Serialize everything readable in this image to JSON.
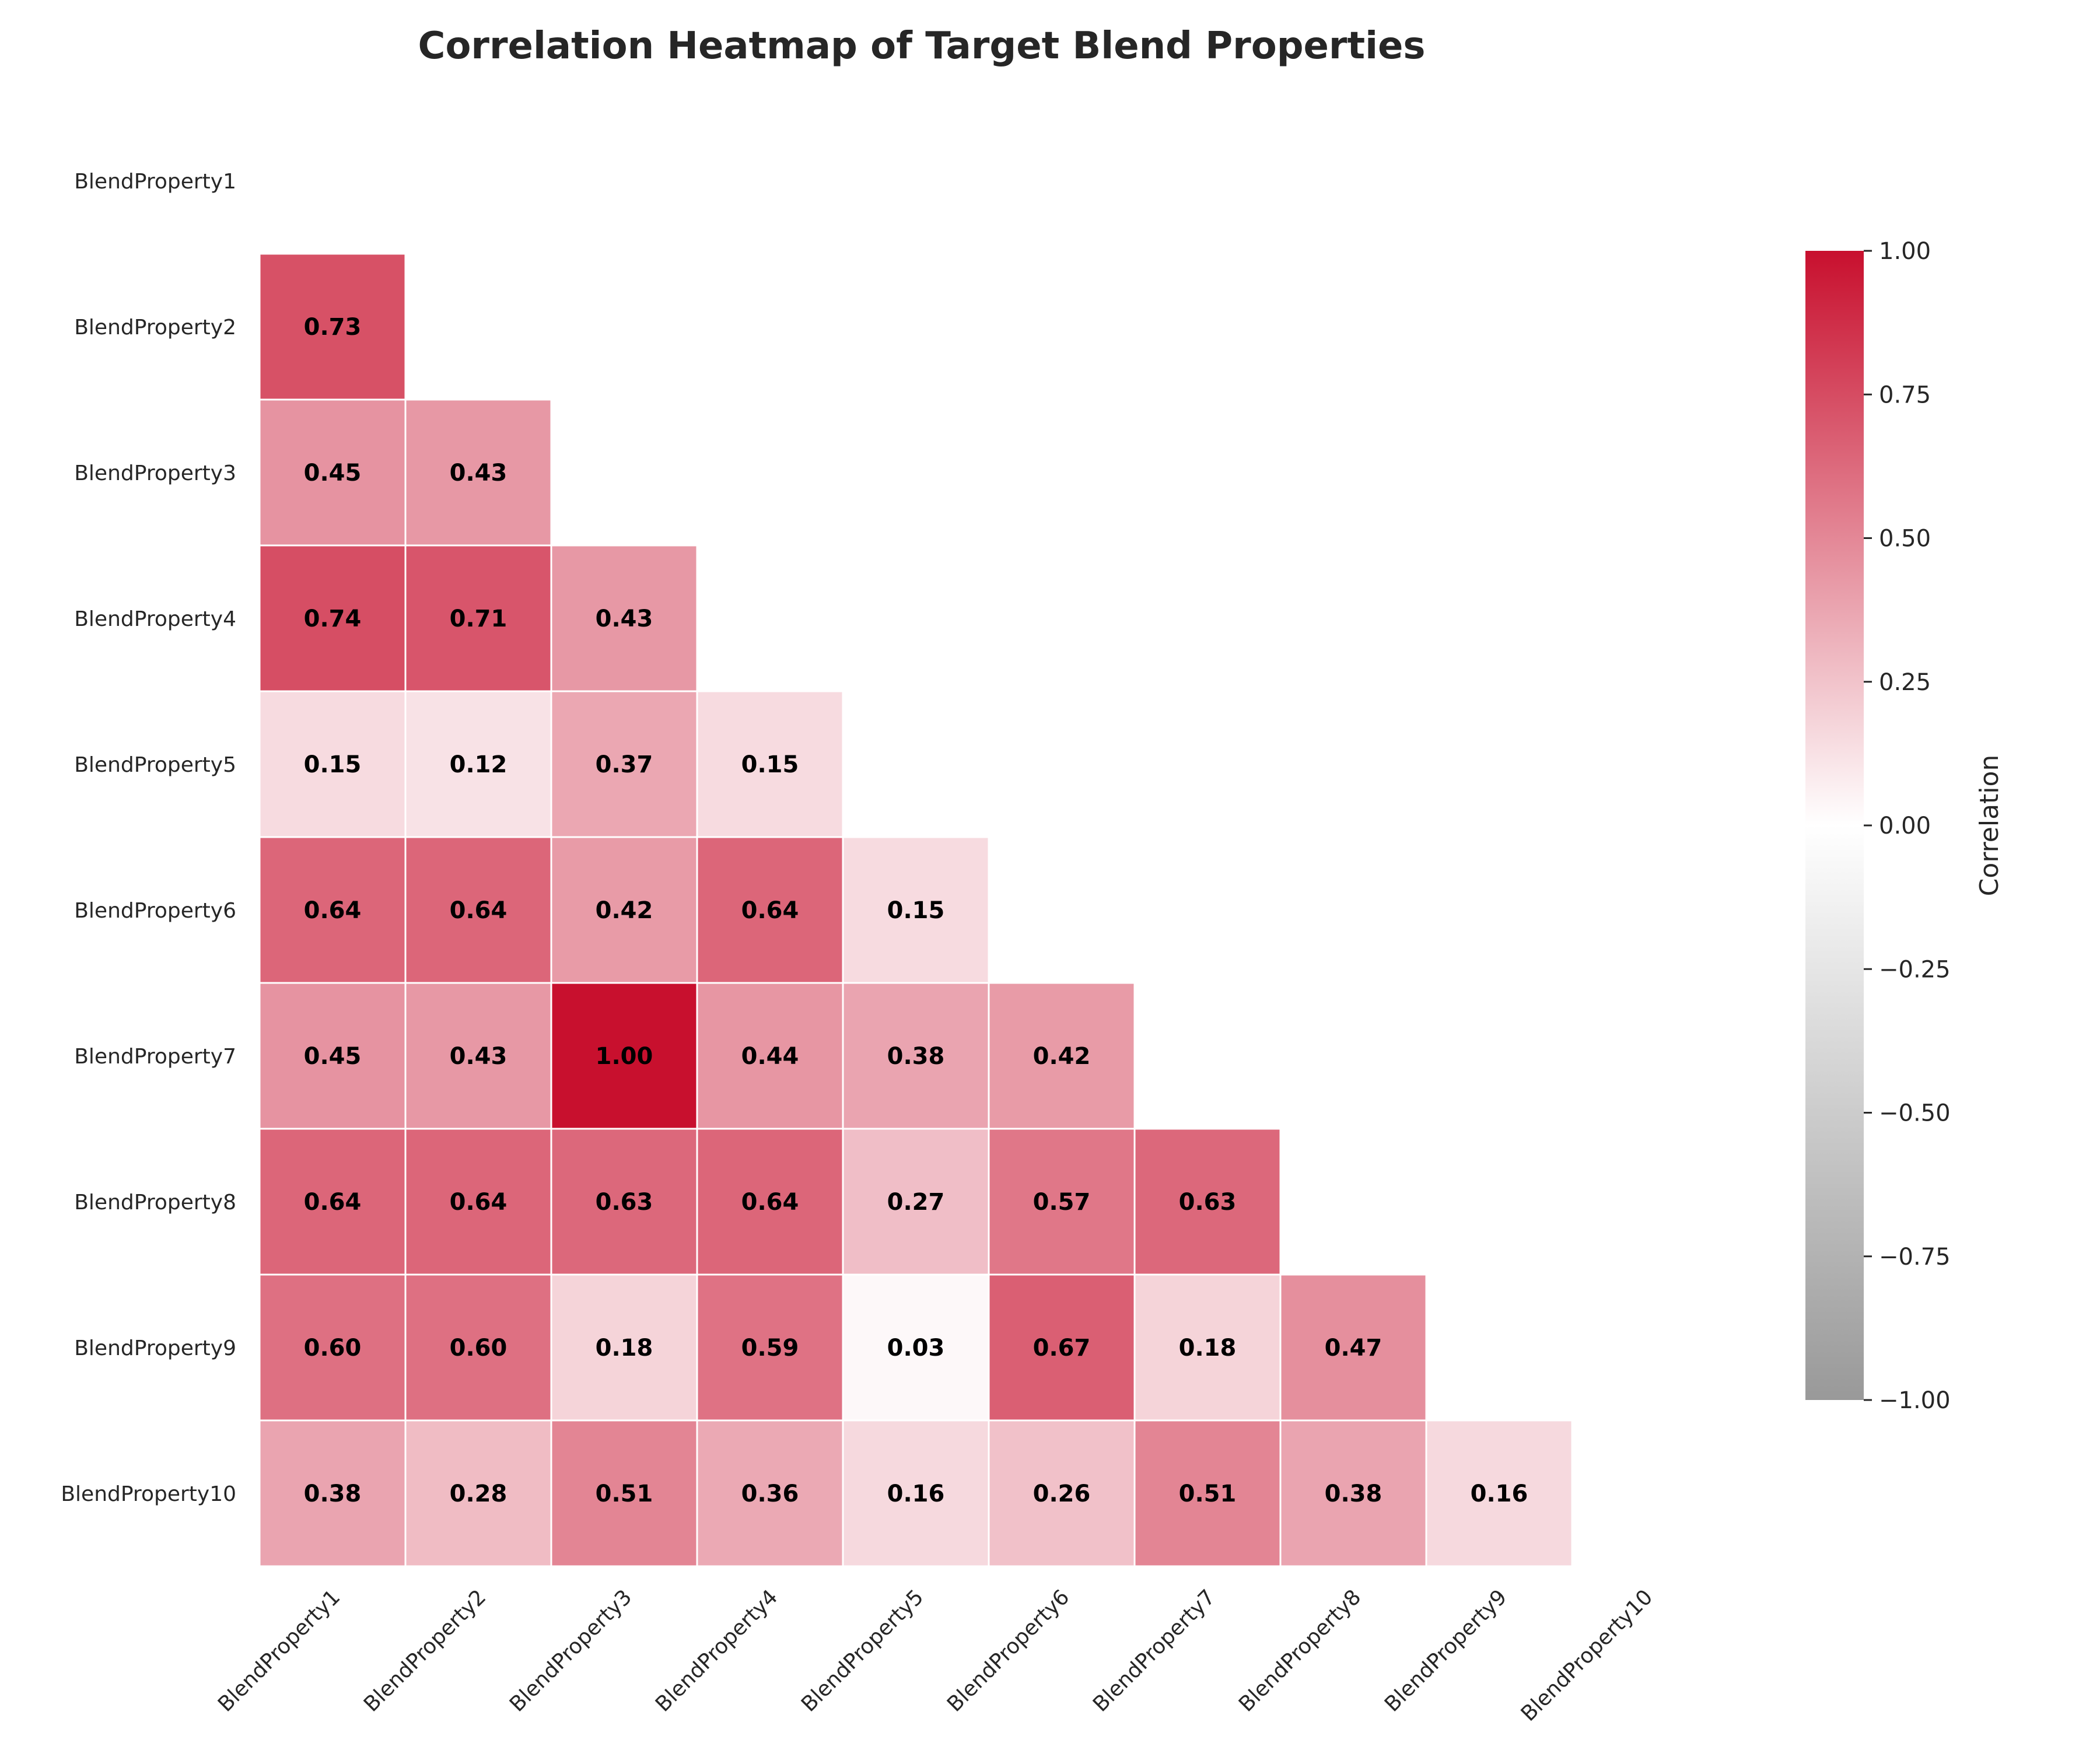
{
  "chart_data": {
    "type": "heatmap",
    "title": "Correlation Heatmap of Target Blend Properties",
    "labels": [
      "BlendProperty1",
      "BlendProperty2",
      "BlendProperty3",
      "BlendProperty4",
      "BlendProperty5",
      "BlendProperty6",
      "BlendProperty7",
      "BlendProperty8",
      "BlendProperty9",
      "BlendProperty10"
    ],
    "mask": "upper-triangle-including-diagonal",
    "lower_triangle": [
      [],
      [
        0.73
      ],
      [
        0.45,
        0.43
      ],
      [
        0.74,
        0.71,
        0.43
      ],
      [
        0.15,
        0.12,
        0.37,
        0.15
      ],
      [
        0.64,
        0.64,
        0.42,
        0.64,
        0.15
      ],
      [
        0.45,
        0.43,
        1.0,
        0.44,
        0.38,
        0.42
      ],
      [
        0.64,
        0.64,
        0.63,
        0.64,
        0.27,
        0.57,
        0.63
      ],
      [
        0.6,
        0.6,
        0.18,
        0.59,
        0.03,
        0.67,
        0.18,
        0.47
      ],
      [
        0.38,
        0.28,
        0.51,
        0.36,
        0.16,
        0.26,
        0.51,
        0.38,
        0.16
      ]
    ],
    "colorbar": {
      "label": "Correlation",
      "min": -1.0,
      "max": 1.0,
      "ticks": [
        "1.00",
        "0.75",
        "0.50",
        "0.25",
        "0.00",
        "−0.25",
        "−0.50",
        "−0.75",
        "−1.00"
      ],
      "colors": {
        "low": "#999999",
        "mid": "#ffffff",
        "high": "#c8102e"
      }
    },
    "annotations": "two-decimal values in each cell"
  }
}
